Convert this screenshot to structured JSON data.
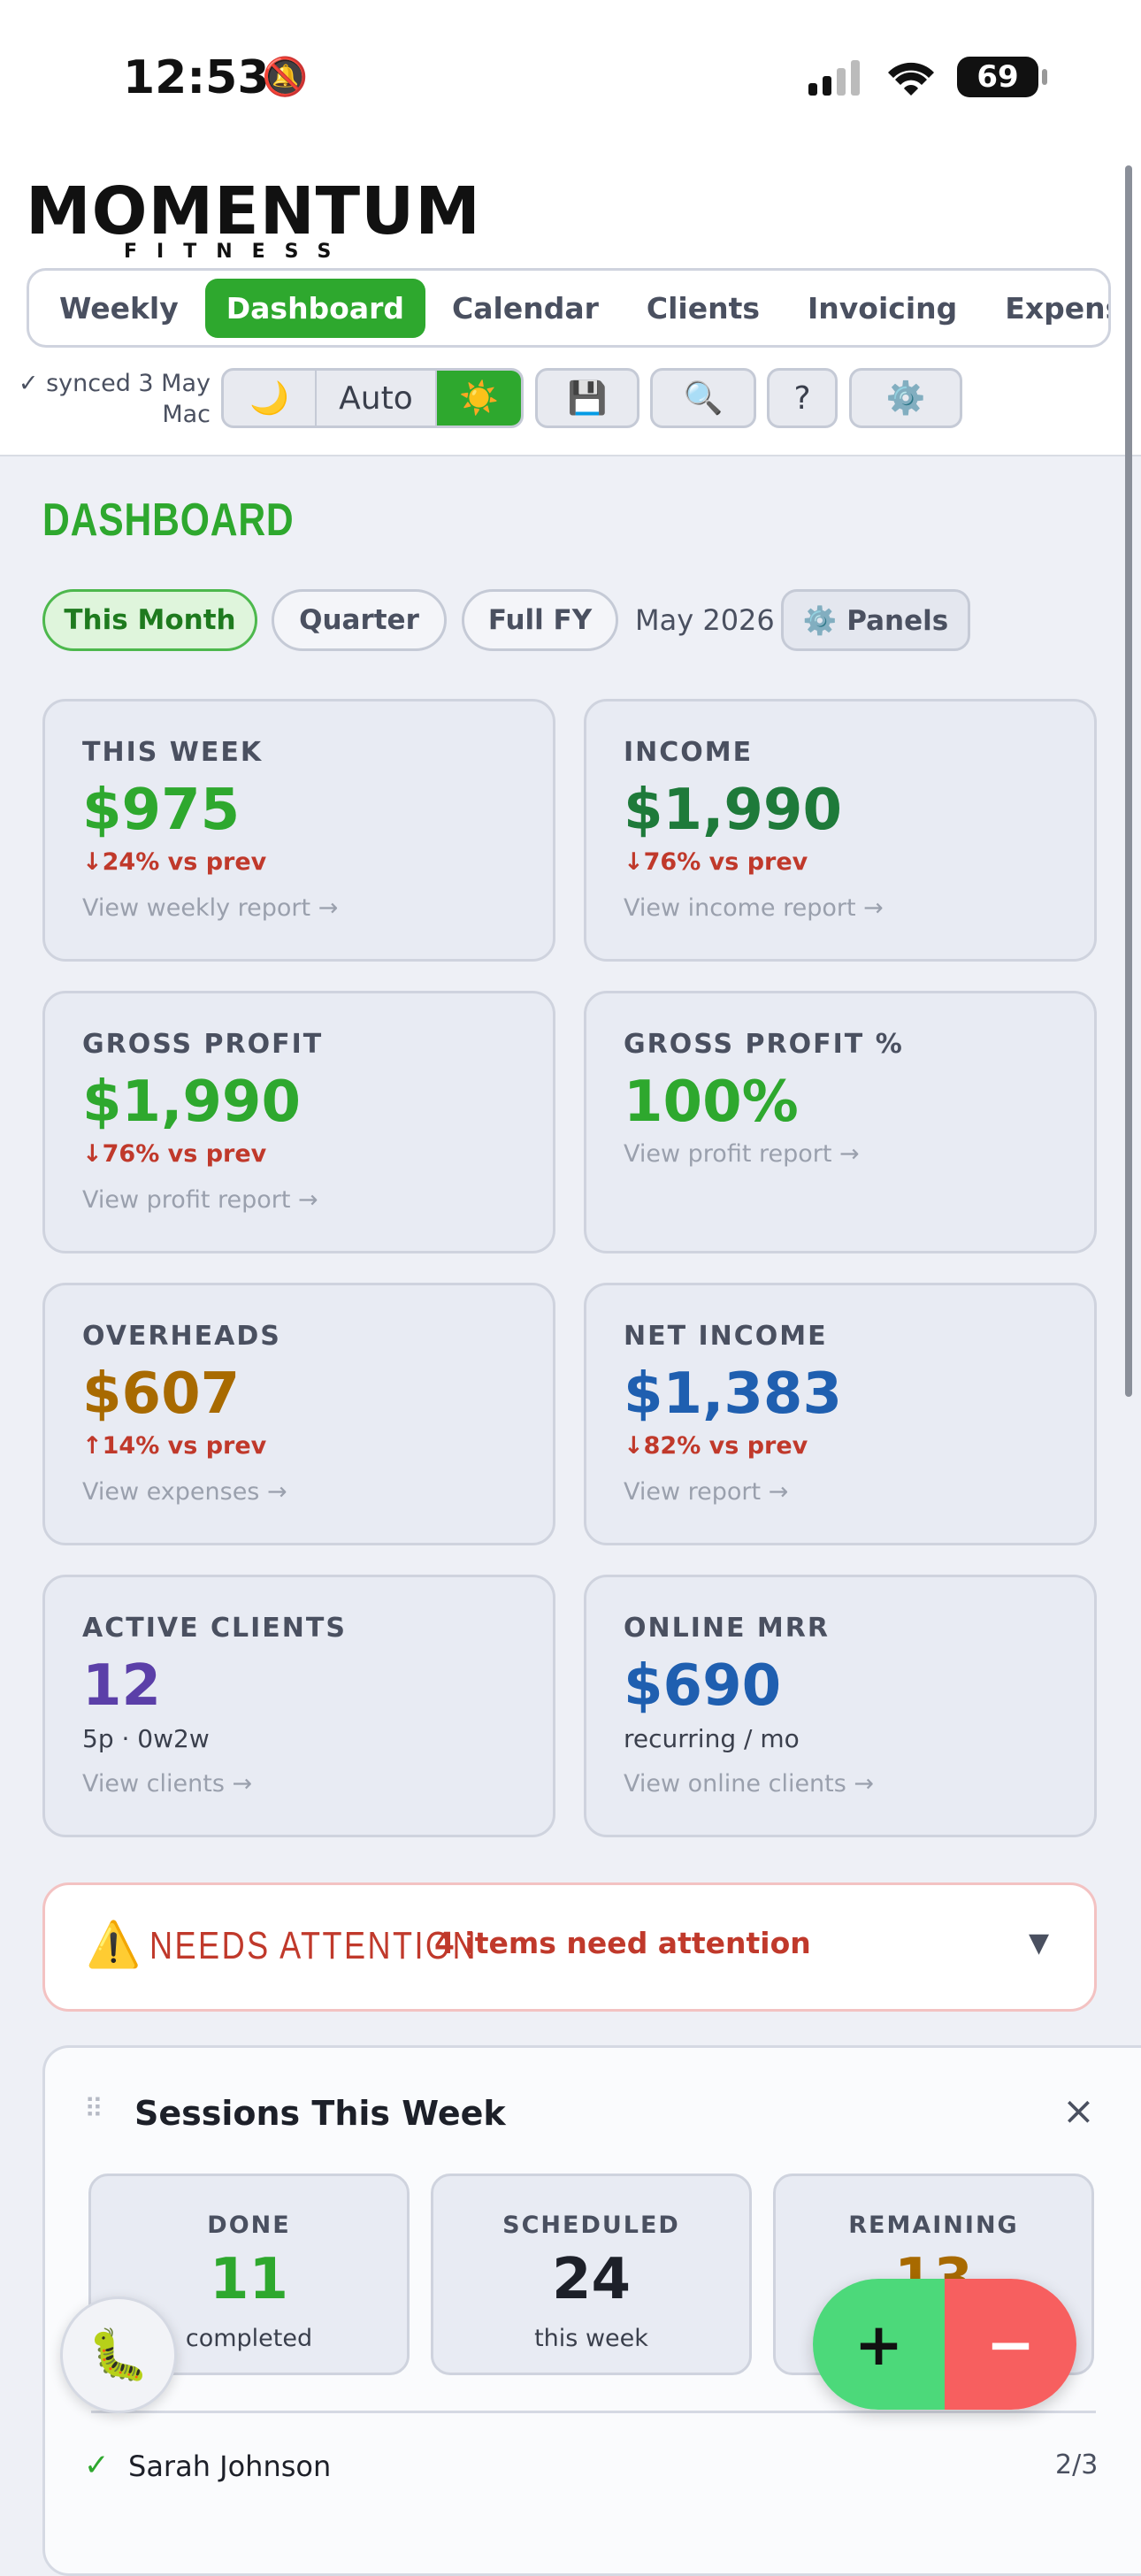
{
  "status_bar": {
    "time": "12:53",
    "battery": "69"
  },
  "brand": {
    "name": "MOMENTUM",
    "tagline": "FITNESS"
  },
  "nav": {
    "tabs": [
      "Weekly",
      "Dashboard",
      "Calendar",
      "Clients",
      "Invoicing",
      "Expenses"
    ],
    "active": 1
  },
  "toolbar": {
    "sync": "✓ synced 3 May Mac",
    "theme": [
      "🌙",
      "Auto",
      "☀️"
    ],
    "buttons": [
      "💾",
      "🔍",
      "?",
      "⚙️"
    ]
  },
  "header": {
    "title": "DASHBOARD"
  },
  "filters": {
    "options": [
      "This Month",
      "Quarter",
      "Full FY"
    ],
    "active": 0,
    "period": "May 2026",
    "panels": "⚙️ Panels"
  },
  "cards": [
    {
      "label": "THIS WEEK",
      "value": "$975",
      "color": "#2ea82e",
      "change": "↓24% vs prev",
      "link": "View weekly report →"
    },
    {
      "label": "INCOME",
      "value": "$1,990",
      "color": "#1e7a3a",
      "change": "↓76% vs prev",
      "link": "View income report →"
    },
    {
      "label": "GROSS PROFIT",
      "value": "$1,990",
      "color": "#2ea82e",
      "change": "↓76% vs prev",
      "link": "View profit report →"
    },
    {
      "label": "GROSS PROFIT %",
      "value": "100%",
      "color": "#2ea82e",
      "link": "View profit report →"
    },
    {
      "label": "OVERHEADS",
      "value": "$607",
      "color": "#a86a00",
      "change": "↑14% vs prev",
      "link": "View expenses →"
    },
    {
      "label": "NET INCOME",
      "value": "$1,383",
      "color": "#1f5fb0",
      "change": "↓82% vs prev",
      "link": "View report →"
    },
    {
      "label": "ACTIVE CLIENTS",
      "value": "12",
      "color": "#5b3fa8",
      "sub": "5p · 0w2w",
      "link": "View clients →"
    },
    {
      "label": "ONLINE MRR",
      "value": "$690",
      "color": "#1f5fb0",
      "sub": "recurring / mo",
      "link": "View online clients →"
    }
  ],
  "attention": {
    "icon": "⚠️",
    "title": "NEEDS ATTENTION",
    "summary": "4 items need attention",
    "toggle": "▼"
  },
  "sessions": {
    "handle": "⠿",
    "title": "Sessions This Week",
    "close": "×",
    "stats": [
      {
        "label": "DONE",
        "value": "11",
        "sub": "completed"
      },
      {
        "label": "SCHEDULED",
        "value": "24",
        "sub": "this week"
      },
      {
        "label": "REMAINING",
        "value": "13"
      }
    ],
    "rows": [
      {
        "check": "✓",
        "name": "Sarah Johnson",
        "count": "2/3"
      }
    ]
  },
  "fab": {
    "bug": "🐛",
    "plus": "+",
    "minus": "−"
  }
}
